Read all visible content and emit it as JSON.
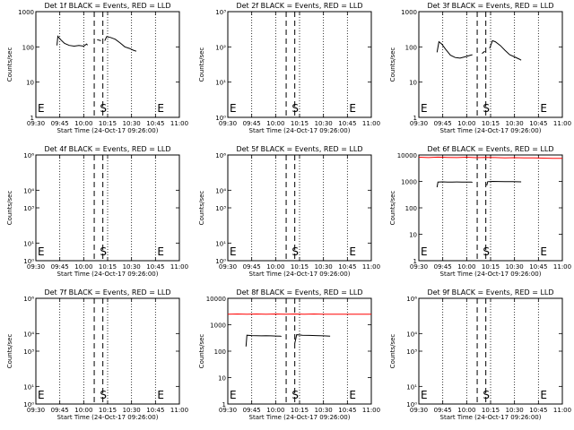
{
  "common": {
    "xlabel": "Start Time (24-Oct-17 09:26:00)",
    "ylabel": "Counts/sec",
    "x_ticks": [
      "09:30",
      "09:45",
      "10:00",
      "10:15",
      "10:30",
      "10:45",
      "11:00"
    ],
    "x_tick_hours": [
      9.5,
      9.75,
      10.0,
      10.25,
      10.5,
      10.75,
      11.0
    ],
    "xlim_hours": [
      9.5,
      11.0
    ],
    "dotted_lines_hours": [
      9.75,
      10.0,
      10.25,
      10.5,
      10.75
    ],
    "markers": [
      {
        "text": "E",
        "at_hour": 9.5
      },
      {
        "text": "S",
        "at_hour": 10.15
      },
      {
        "text": "E",
        "at_hour": 10.75
      }
    ],
    "dashed_lines_hours": [
      10.11,
      10.2
    ],
    "colors": {
      "events": "#000000",
      "lld": "#ff0000"
    }
  },
  "chart_data": [
    {
      "type": "line",
      "yscale": "log",
      "title": "Det 1f BLACK = Events, RED = LLD",
      "ylim": [
        1,
        1000
      ],
      "y_ticks": [
        {
          "v": 1,
          "label": "1"
        },
        {
          "v": 10,
          "label": "10"
        },
        {
          "v": 100,
          "label": "100"
        },
        {
          "v": 1000,
          "label": "1000"
        }
      ],
      "series": [
        {
          "color": "#000000",
          "segments": [
            [
              [
                9.72,
                110
              ],
              [
                9.73,
                200
              ],
              [
                9.76,
                160
              ],
              [
                9.8,
                125
              ],
              [
                9.85,
                110
              ],
              [
                9.9,
                105
              ],
              [
                9.95,
                110
              ],
              [
                10.0,
                105
              ],
              [
                10.03,
                120
              ],
              [
                10.04,
                112
              ]
            ],
            [
              [
                10.14,
                160
              ],
              [
                10.18,
                150
              ]
            ],
            [
              [
                10.22,
                150
              ],
              [
                10.24,
                195
              ],
              [
                10.28,
                185
              ],
              [
                10.33,
                165
              ],
              [
                10.38,
                130
              ],
              [
                10.43,
                100
              ],
              [
                10.48,
                90
              ],
              [
                10.52,
                80
              ],
              [
                10.55,
                75
              ]
            ]
          ]
        }
      ]
    },
    {
      "type": "line",
      "yscale": "log",
      "title": "Det 2f BLACK = Events, RED = LLD",
      "ylim": [
        1,
        1000
      ],
      "y_ticks": [
        {
          "v": 1,
          "label": "10⁰"
        },
        {
          "v": 10,
          "label": "10¹"
        },
        {
          "v": 100,
          "label": "10²"
        },
        {
          "v": 1000,
          "label": "10³"
        }
      ],
      "series": []
    },
    {
      "type": "line",
      "yscale": "log",
      "title": "Det 3f BLACK = Events, RED = LLD",
      "ylim": [
        1,
        1000
      ],
      "y_ticks": [
        {
          "v": 1,
          "label": "1"
        },
        {
          "v": 10,
          "label": "10"
        },
        {
          "v": 100,
          "label": "100"
        },
        {
          "v": 1000,
          "label": "1000"
        }
      ],
      "series": [
        {
          "color": "#000000",
          "segments": [
            [
              [
                9.69,
                70
              ],
              [
                9.71,
                140
              ],
              [
                9.74,
                120
              ],
              [
                9.78,
                85
              ],
              [
                9.83,
                58
              ],
              [
                9.88,
                50
              ],
              [
                9.93,
                48
              ],
              [
                9.98,
                52
              ],
              [
                10.04,
                58
              ],
              [
                10.06,
                60
              ]
            ],
            [
              [
                10.16,
                65
              ],
              [
                10.19,
                75
              ]
            ],
            [
              [
                10.24,
                90
              ],
              [
                10.27,
                150
              ],
              [
                10.3,
                140
              ],
              [
                10.35,
                110
              ],
              [
                10.4,
                80
              ],
              [
                10.45,
                60
              ],
              [
                10.5,
                52
              ],
              [
                10.55,
                45
              ],
              [
                10.57,
                42
              ]
            ]
          ]
        }
      ]
    },
    {
      "type": "line",
      "yscale": "log",
      "title": "Det 4f BLACK = Events, RED = LLD",
      "ylim": [
        1,
        1000000
      ],
      "y_ticks": [
        {
          "v": 1,
          "label": "10⁰"
        },
        {
          "v": 10,
          "label": "10¹"
        },
        {
          "v": 1000,
          "label": "10³"
        },
        {
          "v": 10000,
          "label": "10⁴"
        },
        {
          "v": 1000000,
          "label": "10⁶"
        }
      ],
      "series": []
    },
    {
      "type": "line",
      "yscale": "log",
      "title": "Det 5f BLACK = Events, RED = LLD",
      "ylim": [
        1,
        1000000
      ],
      "y_ticks": [
        {
          "v": 1,
          "label": "10⁰"
        },
        {
          "v": 10,
          "label": "10¹"
        },
        {
          "v": 1000,
          "label": "10³"
        },
        {
          "v": 10000,
          "label": "10⁴"
        },
        {
          "v": 1000000,
          "label": "10⁶"
        }
      ],
      "series": []
    },
    {
      "type": "line",
      "yscale": "log",
      "title": "Det 6f BLACK = Events, RED = LLD",
      "ylim": [
        1,
        10000
      ],
      "y_ticks": [
        {
          "v": 1,
          "label": "1"
        },
        {
          "v": 10,
          "label": "10"
        },
        {
          "v": 100,
          "label": "100"
        },
        {
          "v": 1000,
          "label": "1000"
        },
        {
          "v": 10000,
          "label": "10000"
        }
      ],
      "series": [
        {
          "color": "#ff0000",
          "segments": [
            [
              [
                9.5,
                8200
              ],
              [
                9.6,
                8000
              ],
              [
                9.7,
                8300
              ],
              [
                9.8,
                8100
              ],
              [
                9.9,
                8000
              ],
              [
                10.0,
                8200
              ],
              [
                10.1,
                7900
              ],
              [
                10.2,
                8100
              ],
              [
                10.3,
                8000
              ],
              [
                10.4,
                7800
              ],
              [
                10.5,
                7900
              ],
              [
                10.6,
                7800
              ],
              [
                10.7,
                7700
              ],
              [
                10.8,
                7600
              ],
              [
                10.9,
                7500
              ],
              [
                11.0,
                7500
              ]
            ]
          ]
        },
        {
          "color": "#000000",
          "segments": [
            [
              [
                9.69,
                600
              ],
              [
                9.7,
                950
              ],
              [
                9.75,
                960
              ],
              [
                9.8,
                950
              ],
              [
                9.85,
                945
              ],
              [
                9.9,
                955
              ],
              [
                9.95,
                950
              ],
              [
                10.0,
                945
              ],
              [
                10.05,
                940
              ],
              [
                10.06,
                920
              ]
            ],
            [
              [
                10.21,
                700
              ],
              [
                10.22,
                980
              ],
              [
                10.27,
                1000
              ],
              [
                10.33,
                990
              ],
              [
                10.4,
                980
              ],
              [
                10.48,
                975
              ],
              [
                10.57,
                960
              ]
            ]
          ]
        }
      ]
    },
    {
      "type": "line",
      "yscale": "log",
      "title": "Det 7f BLACK = Events, RED = LLD",
      "ylim": [
        1,
        1000000
      ],
      "y_ticks": [
        {
          "v": 1,
          "label": "10⁰"
        },
        {
          "v": 10,
          "label": "10¹"
        },
        {
          "v": 1000,
          "label": "10³"
        },
        {
          "v": 10000,
          "label": "10⁴"
        },
        {
          "v": 1000000,
          "label": "10⁶"
        }
      ],
      "series": []
    },
    {
      "type": "line",
      "yscale": "log",
      "title": "Det 8f BLACK = Events, RED = LLD",
      "ylim": [
        1,
        10000
      ],
      "y_ticks": [
        {
          "v": 1,
          "label": "1"
        },
        {
          "v": 10,
          "label": "10"
        },
        {
          "v": 100,
          "label": "100"
        },
        {
          "v": 1000,
          "label": "1000"
        },
        {
          "v": 10000,
          "label": "10000"
        }
      ],
      "series": [
        {
          "color": "#ff0000",
          "segments": [
            [
              [
                9.5,
                2500
              ],
              [
                9.6,
                2550
              ],
              [
                9.7,
                2500
              ],
              [
                9.8,
                2550
              ],
              [
                9.9,
                2500
              ],
              [
                10.0,
                2550
              ],
              [
                10.1,
                2500
              ],
              [
                10.2,
                2550
              ],
              [
                10.3,
                2500
              ],
              [
                10.4,
                2550
              ],
              [
                10.5,
                2500
              ],
              [
                10.6,
                2520
              ],
              [
                10.7,
                2500
              ],
              [
                10.8,
                2510
              ],
              [
                10.9,
                2500
              ],
              [
                11.0,
                2500
              ]
            ]
          ]
        },
        {
          "color": "#000000",
          "segments": [
            [
              [
                9.69,
                150
              ],
              [
                9.7,
                400
              ],
              [
                9.75,
                390
              ],
              [
                9.8,
                385
              ],
              [
                9.85,
                380
              ],
              [
                9.9,
                385
              ],
              [
                9.95,
                380
              ],
              [
                10.0,
                375
              ],
              [
                10.05,
                370
              ],
              [
                10.06,
                360
              ]
            ],
            [
              [
                10.2,
                200
              ],
              [
                10.22,
                420
              ],
              [
                10.28,
                400
              ],
              [
                10.35,
                395
              ],
              [
                10.42,
                390
              ],
              [
                10.5,
                380
              ],
              [
                10.57,
                370
              ]
            ]
          ]
        }
      ]
    },
    {
      "type": "line",
      "yscale": "log",
      "title": "Det 9f BLACK = Events, RED = LLD",
      "ylim": [
        1,
        1000000
      ],
      "y_ticks": [
        {
          "v": 1,
          "label": "10⁰"
        },
        {
          "v": 10,
          "label": "10¹"
        },
        {
          "v": 1000,
          "label": "10³"
        },
        {
          "v": 10000,
          "label": "10⁴"
        },
        {
          "v": 1000000,
          "label": "10⁶"
        }
      ],
      "series": []
    }
  ]
}
